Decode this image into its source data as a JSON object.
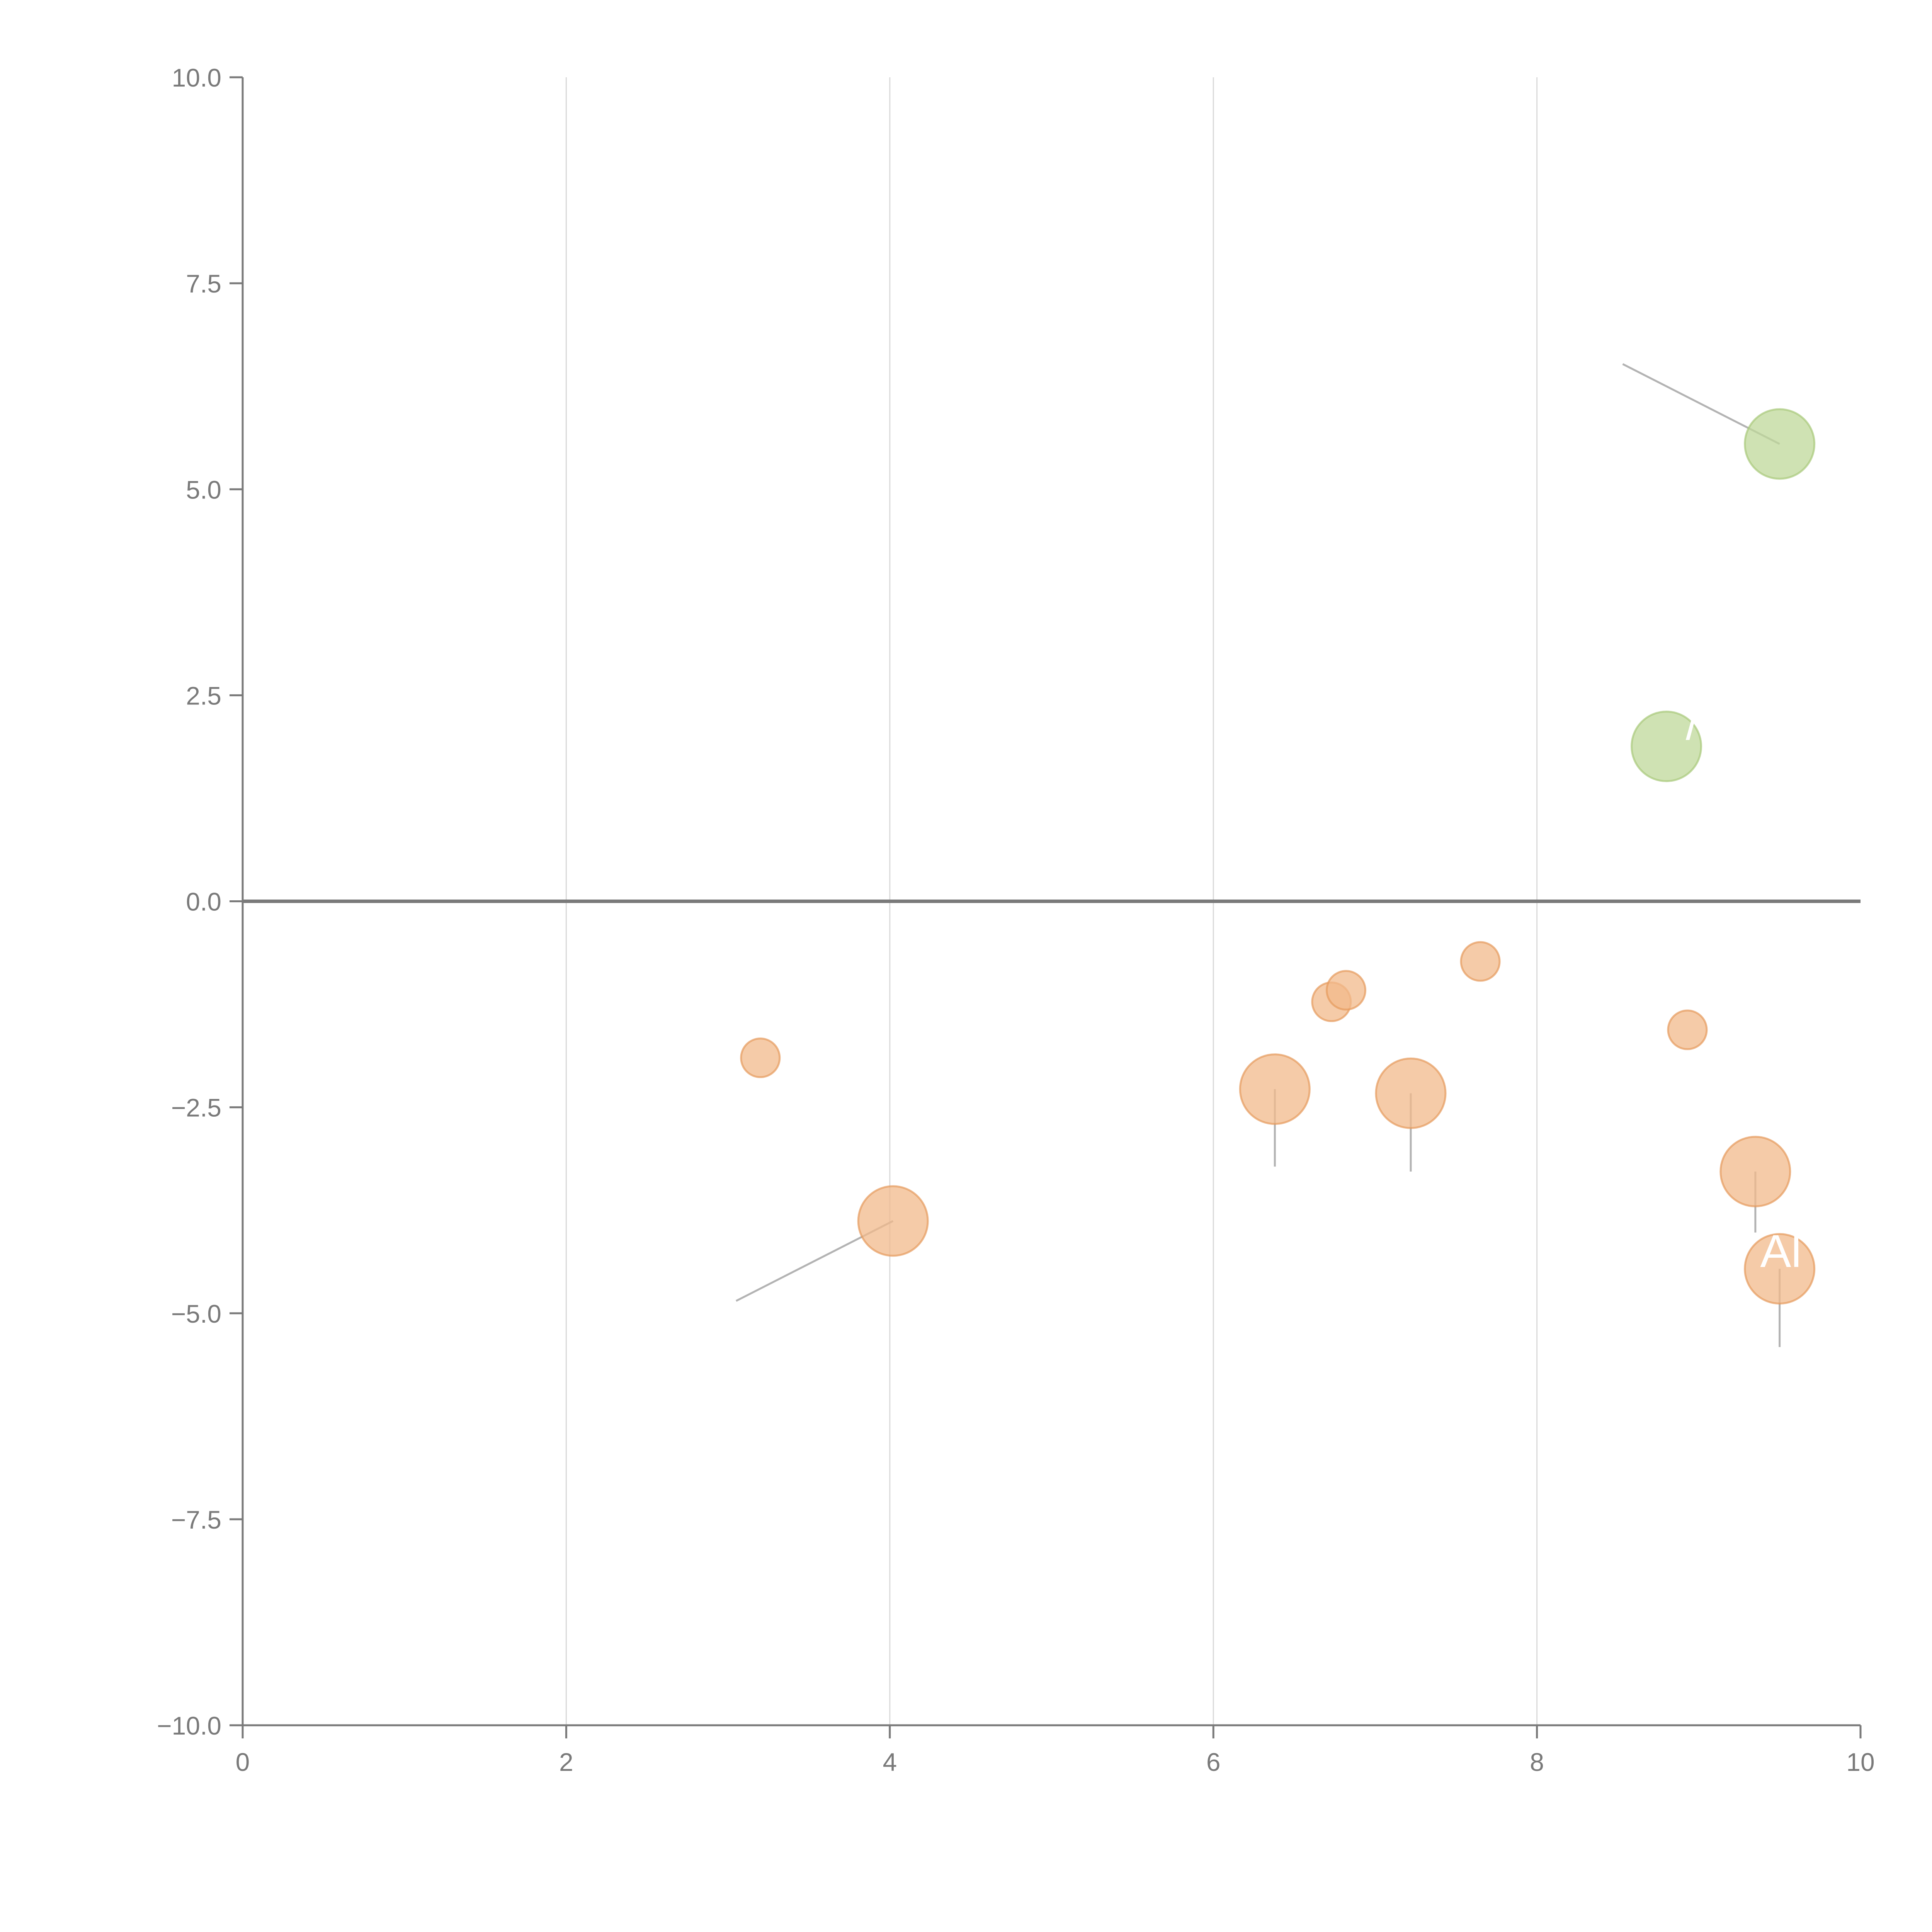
{
  "chart_data": {
    "type": "scatter",
    "title": "",
    "xlabel": "",
    "ylabel": "",
    "xlim": [
      0,
      10
    ],
    "ylim": [
      -10,
      10
    ],
    "x_ticks": [
      "0",
      "2",
      "4",
      "6",
      "8",
      "10"
    ],
    "y_ticks": [
      "10.0",
      "7.5",
      "5.0",
      "2.5",
      "0.0",
      "−2.5",
      "−5.0",
      "−7.5",
      "−10.0"
    ],
    "grid": "vertical",
    "zero_line": true,
    "colors": {
      "positive": "#bfd89a",
      "negative": "#f2b98b",
      "positive_edge": "#a8c97b",
      "negative_edge": "#e69a5c",
      "axis": "#7a7a7a",
      "grid": "#d9d9d9",
      "leader": "#b3b3b3"
    },
    "points": [
      {
        "x": 9.5,
        "y": 5.55,
        "size": 3,
        "group": "positive",
        "leader_to": [
          8.53,
          6.52
        ]
      },
      {
        "x": 8.8,
        "y": 1.88,
        "size": 3,
        "group": "positive",
        "label": "/",
        "label_at": [
          8.92,
          2.15
        ]
      },
      {
        "x": 3.2,
        "y": -1.9,
        "size": 1,
        "group": "negative"
      },
      {
        "x": 4.02,
        "y": -3.88,
        "size": 3,
        "group": "negative",
        "leader_to": [
          3.05,
          -4.85
        ]
      },
      {
        "x": 6.38,
        "y": -2.28,
        "size": 3,
        "group": "negative",
        "leader_to": [
          6.38,
          -3.22
        ]
      },
      {
        "x": 6.73,
        "y": -1.22,
        "size": 1,
        "group": "negative"
      },
      {
        "x": 6.82,
        "y": -1.08,
        "size": 1,
        "group": "negative"
      },
      {
        "x": 7.22,
        "y": -2.33,
        "size": 3,
        "group": "negative",
        "leader_to": [
          7.22,
          -3.28
        ]
      },
      {
        "x": 7.65,
        "y": -0.73,
        "size": 1,
        "group": "negative"
      },
      {
        "x": 8.93,
        "y": -1.56,
        "size": 1,
        "group": "negative"
      },
      {
        "x": 9.35,
        "y": -3.28,
        "size": 3,
        "group": "negative",
        "leader_to": [
          9.35,
          -4.02
        ]
      },
      {
        "x": 9.5,
        "y": -4.46,
        "size": 3,
        "group": "negative",
        "leader_to": [
          9.5,
          -5.41
        ],
        "label": "Al",
        "label_at": [
          9.38,
          -4.25
        ]
      }
    ]
  }
}
